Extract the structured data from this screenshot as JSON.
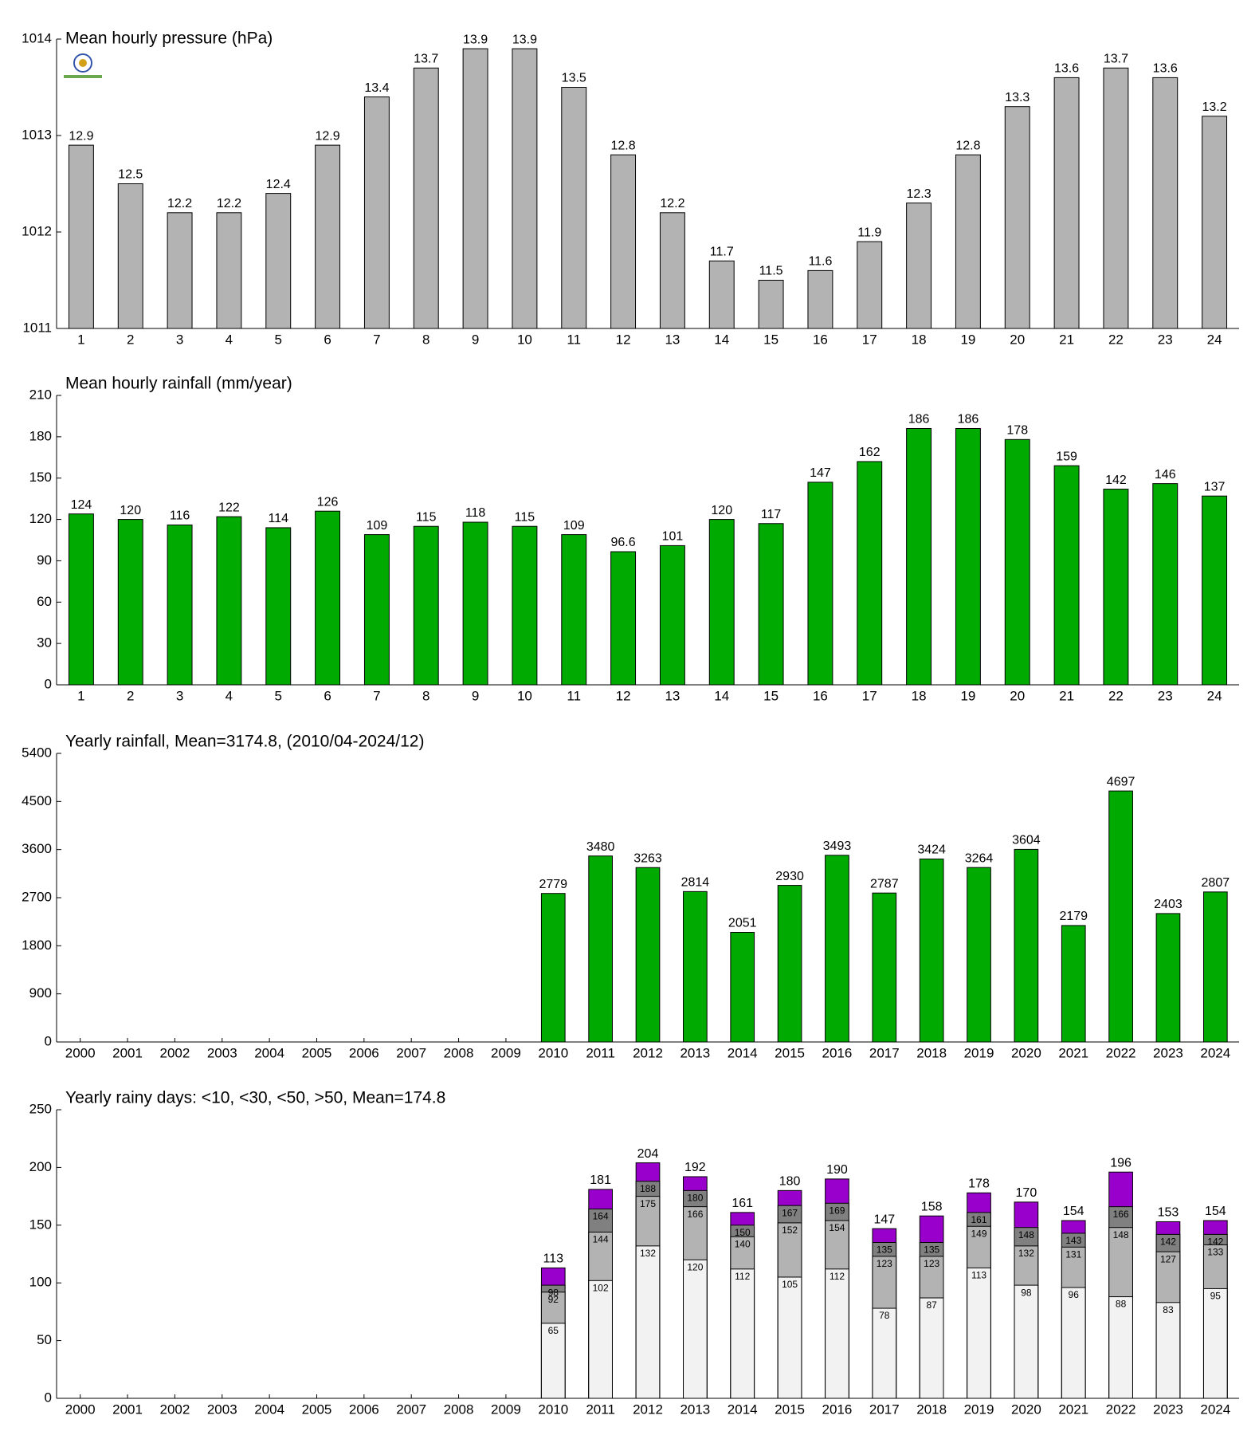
{
  "chart_data": [
    {
      "type": "bar",
      "title": "Mean hourly pressure (hPa)",
      "categories": [
        "1",
        "2",
        "3",
        "4",
        "5",
        "6",
        "7",
        "8",
        "9",
        "10",
        "11",
        "12",
        "13",
        "14",
        "15",
        "16",
        "17",
        "18",
        "19",
        "20",
        "21",
        "22",
        "23",
        "24"
      ],
      "values": [
        1012.9,
        1012.5,
        1012.2,
        1012.2,
        1012.4,
        1012.9,
        1013.4,
        1013.7,
        1013.9,
        1013.9,
        1013.5,
        1012.8,
        1012.2,
        1011.7,
        1011.5,
        1011.6,
        1011.9,
        1012.3,
        1012.8,
        1013.3,
        1013.6,
        1013.7,
        1013.6,
        1013.2
      ],
      "value_labels": [
        "12.9",
        "12.5",
        "12.2",
        "12.2",
        "12.4",
        "12.9",
        "13.4",
        "13.7",
        "13.9",
        "13.9",
        "13.5",
        "12.8",
        "12.2",
        "11.7",
        "11.5",
        "11.6",
        "11.9",
        "12.3",
        "12.8",
        "13.3",
        "13.6",
        "13.7",
        "13.6",
        "13.2"
      ],
      "color": "#b3b3b3",
      "ylim": [
        1011,
        1014
      ],
      "yticks": [
        1011,
        1012,
        1013,
        1014
      ]
    },
    {
      "type": "bar",
      "title": "Mean hourly rainfall (mm/year)",
      "categories": [
        "1",
        "2",
        "3",
        "4",
        "5",
        "6",
        "7",
        "8",
        "9",
        "10",
        "11",
        "12",
        "13",
        "14",
        "15",
        "16",
        "17",
        "18",
        "19",
        "20",
        "21",
        "22",
        "23",
        "24"
      ],
      "values": [
        124,
        120,
        116,
        122,
        114,
        126,
        109,
        115,
        118,
        115,
        109,
        96.6,
        101,
        120,
        117,
        147,
        162,
        186,
        186,
        178,
        159,
        142,
        146,
        137
      ],
      "color": "#00aa00",
      "ylim": [
        0,
        210
      ],
      "yticks": [
        0,
        30,
        60,
        90,
        120,
        150,
        180,
        210
      ]
    },
    {
      "type": "bar",
      "title": "Yearly rainfall, Mean=3174.8, (2010/04-2024/12)",
      "categories": [
        "2000",
        "2001",
        "2002",
        "2003",
        "2004",
        "2005",
        "2006",
        "2007",
        "2008",
        "2009",
        "2010",
        "2011",
        "2012",
        "2013",
        "2014",
        "2015",
        "2016",
        "2017",
        "2018",
        "2019",
        "2020",
        "2021",
        "2022",
        "2023",
        "2024"
      ],
      "values": [
        null,
        null,
        null,
        null,
        null,
        null,
        null,
        null,
        null,
        null,
        2779,
        3480,
        3263,
        2814,
        2051,
        2930,
        3493,
        2787,
        3424,
        3264,
        3604,
        2179,
        4697,
        2403,
        2807
      ],
      "color": "#00aa00",
      "ylim": [
        0,
        5400
      ],
      "yticks": [
        0,
        900,
        1800,
        2700,
        3600,
        4500,
        5400
      ]
    },
    {
      "type": "overlap-bar",
      "title": "Yearly rainy days: <10, <30, <50, >50, Mean=174.8",
      "categories": [
        "2000",
        "2001",
        "2002",
        "2003",
        "2004",
        "2005",
        "2006",
        "2007",
        "2008",
        "2009",
        "2010",
        "2011",
        "2012",
        "2013",
        "2014",
        "2015",
        "2016",
        "2017",
        "2018",
        "2019",
        "2020",
        "2021",
        "2022",
        "2023",
        "2024"
      ],
      "series": [
        {
          "color": "#f2f2f2",
          "values": [
            null,
            null,
            null,
            null,
            null,
            null,
            null,
            null,
            null,
            null,
            65,
            102,
            132,
            120,
            112,
            105,
            112,
            78,
            87,
            113,
            98,
            96,
            88,
            83,
            95
          ]
        },
        {
          "color": "#b3b3b3",
          "values": [
            null,
            null,
            null,
            null,
            null,
            null,
            null,
            null,
            null,
            null,
            92,
            144,
            175,
            166,
            140,
            152,
            154,
            123,
            123,
            149,
            132,
            131,
            148,
            127,
            133
          ]
        },
        {
          "color": "#808080",
          "values": [
            null,
            null,
            null,
            null,
            null,
            null,
            null,
            null,
            null,
            null,
            98,
            164,
            188,
            180,
            150,
            167,
            169,
            135,
            135,
            161,
            148,
            143,
            166,
            142,
            142
          ]
        },
        {
          "color": "#9900cc",
          "values": [
            null,
            null,
            null,
            null,
            null,
            null,
            null,
            null,
            null,
            null,
            113,
            181,
            204,
            192,
            161,
            180,
            190,
            147,
            158,
            178,
            170,
            154,
            196,
            153,
            154
          ]
        }
      ],
      "ylim": [
        0,
        250
      ],
      "yticks": [
        0,
        50,
        100,
        150,
        200,
        250
      ]
    }
  ]
}
